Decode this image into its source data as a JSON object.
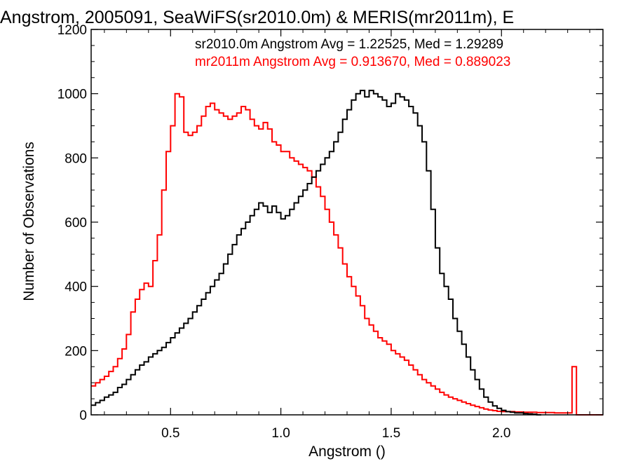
{
  "chart_data": {
    "type": "line",
    "title": "Angstrom, 2005091, SeaWiFS(sr2010.0m) & MERIS(mr2011m), E",
    "xlabel": "Angstrom ()",
    "ylabel": "Number of Observations",
    "xlim": [
      0.14,
      2.46
    ],
    "ylim": [
      0,
      1200
    ],
    "xticks": [
      "0.5",
      "1.0",
      "1.5",
      "2.0"
    ],
    "yticks": [
      "0",
      "200",
      "400",
      "600",
      "800",
      "1000",
      "1200"
    ],
    "xtick_values": [
      0.5,
      1.0,
      1.5,
      2.0
    ],
    "ytick_values": [
      0,
      200,
      400,
      600,
      800,
      1000,
      1200
    ],
    "grid": false,
    "step": true,
    "series": [
      {
        "name": "sr2010.0m",
        "color": "#000000",
        "stats": "sr2010.0m Angstrom Avg = 1.22525, Med = 1.29289",
        "x": [
          0.14,
          0.16,
          0.18,
          0.2,
          0.22,
          0.24,
          0.26,
          0.28,
          0.3,
          0.32,
          0.34,
          0.36,
          0.38,
          0.4,
          0.42,
          0.44,
          0.46,
          0.48,
          0.5,
          0.52,
          0.54,
          0.56,
          0.58,
          0.6,
          0.62,
          0.64,
          0.66,
          0.68,
          0.7,
          0.72,
          0.74,
          0.76,
          0.78,
          0.8,
          0.82,
          0.84,
          0.86,
          0.88,
          0.9,
          0.92,
          0.94,
          0.96,
          0.98,
          1.0,
          1.02,
          1.04,
          1.06,
          1.08,
          1.1,
          1.12,
          1.14,
          1.16,
          1.18,
          1.2,
          1.22,
          1.24,
          1.26,
          1.28,
          1.3,
          1.32,
          1.34,
          1.36,
          1.38,
          1.4,
          1.42,
          1.44,
          1.46,
          1.48,
          1.5,
          1.52,
          1.54,
          1.56,
          1.58,
          1.6,
          1.62,
          1.64,
          1.66,
          1.68,
          1.7,
          1.72,
          1.74,
          1.76,
          1.78,
          1.8,
          1.82,
          1.84,
          1.86,
          1.88,
          1.9,
          1.92,
          1.94,
          1.96,
          1.98,
          2.0,
          2.02,
          2.04,
          2.06,
          2.08,
          2.1,
          2.12,
          2.14,
          2.16
        ],
        "y": [
          30,
          38,
          45,
          55,
          62,
          70,
          85,
          95,
          110,
          125,
          140,
          155,
          165,
          180,
          190,
          200,
          210,
          225,
          240,
          255,
          270,
          285,
          300,
          320,
          340,
          360,
          380,
          400,
          420,
          440,
          470,
          500,
          530,
          560,
          580,
          600,
          620,
          640,
          660,
          650,
          630,
          650,
          630,
          610,
          620,
          640,
          660,
          680,
          700,
          720,
          740,
          760,
          780,
          800,
          820,
          850,
          880,
          920,
          950,
          980,
          1000,
          1010,
          990,
          1010,
          1000,
          990,
          980,
          960,
          970,
          1000,
          990,
          980,
          960,
          940,
          900,
          850,
          760,
          640,
          520,
          440,
          400,
          360,
          300,
          260,
          220,
          180,
          140,
          110,
          80,
          55,
          40,
          28,
          20,
          14,
          10,
          8,
          6,
          6,
          4,
          3,
          2,
          0
        ]
      },
      {
        "name": "mr2011m",
        "color": "#ff0000",
        "stats": "mr2011m Angstrom Avg = 0.913670, Med = 0.889023",
        "x": [
          0.14,
          0.16,
          0.18,
          0.2,
          0.22,
          0.24,
          0.26,
          0.28,
          0.3,
          0.32,
          0.34,
          0.36,
          0.38,
          0.4,
          0.42,
          0.44,
          0.46,
          0.48,
          0.5,
          0.52,
          0.54,
          0.56,
          0.58,
          0.6,
          0.62,
          0.64,
          0.66,
          0.68,
          0.7,
          0.72,
          0.74,
          0.76,
          0.78,
          0.8,
          0.82,
          0.84,
          0.86,
          0.88,
          0.9,
          0.92,
          0.94,
          0.96,
          0.98,
          1.0,
          1.02,
          1.04,
          1.06,
          1.08,
          1.1,
          1.12,
          1.14,
          1.16,
          1.18,
          1.2,
          1.22,
          1.24,
          1.26,
          1.28,
          1.3,
          1.32,
          1.34,
          1.36,
          1.38,
          1.4,
          1.42,
          1.44,
          1.46,
          1.48,
          1.5,
          1.52,
          1.54,
          1.56,
          1.58,
          1.6,
          1.62,
          1.64,
          1.66,
          1.68,
          1.7,
          1.72,
          1.74,
          1.76,
          1.78,
          1.8,
          1.82,
          1.84,
          1.86,
          1.88,
          1.9,
          1.92,
          1.94,
          1.96,
          1.98,
          2.0,
          2.02,
          2.04,
          2.06,
          2.08,
          2.1,
          2.12,
          2.14,
          2.16,
          2.18,
          2.2,
          2.22,
          2.24,
          2.26,
          2.28,
          2.3,
          2.32,
          2.34,
          2.36,
          2.38,
          2.4,
          2.42,
          2.44
        ],
        "y": [
          90,
          100,
          110,
          120,
          135,
          150,
          175,
          205,
          250,
          320,
          360,
          390,
          410,
          400,
          480,
          560,
          700,
          820,
          900,
          1000,
          990,
          880,
          870,
          880,
          900,
          930,
          960,
          970,
          950,
          940,
          930,
          920,
          930,
          940,
          960,
          950,
          920,
          900,
          890,
          910,
          890,
          850,
          840,
          820,
          820,
          800,
          790,
          780,
          770,
          760,
          740,
          710,
          680,
          640,
          600,
          560,
          520,
          470,
          430,
          400,
          370,
          340,
          300,
          280,
          260,
          240,
          230,
          220,
          200,
          190,
          180,
          170,
          155,
          140,
          125,
          110,
          100,
          90,
          80,
          70,
          62,
          55,
          50,
          45,
          40,
          35,
          30,
          26,
          22,
          18,
          15,
          13,
          11,
          10,
          10,
          10,
          9,
          9,
          8,
          8,
          8,
          7,
          7,
          7,
          7,
          6,
          6,
          6,
          6,
          150,
          0,
          0,
          0,
          0,
          0,
          0
        ]
      }
    ]
  }
}
